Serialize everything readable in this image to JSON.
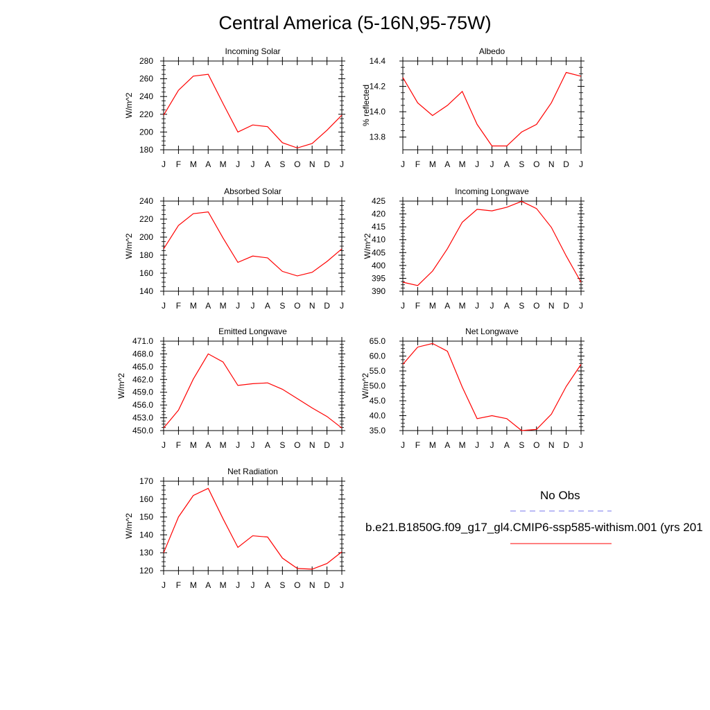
{
  "figure": {
    "title": "Central America (5-16N,95-75W)"
  },
  "legend": {
    "obs_label": "No Obs",
    "obs_color": "#7777ee",
    "model_label": "b.e21.B1850G.f09_g17_gl4.CMIP6-ssp585-withism.001 (yrs 201",
    "model_color": "#ff0000"
  },
  "chart_data": [
    {
      "type": "line",
      "title": "Incoming Solar",
      "ylabel": "W/m^2",
      "categories": [
        "J",
        "F",
        "M",
        "A",
        "M",
        "J",
        "J",
        "A",
        "S",
        "O",
        "N",
        "D",
        "J"
      ],
      "ylim": [
        180,
        280
      ],
      "yticks": [
        "180",
        "200",
        "220",
        "240",
        "260",
        "280"
      ],
      "series": [
        {
          "values": [
            219,
            247,
            263,
            265,
            232,
            200,
            208,
            206,
            188,
            182,
            187,
            202,
            219
          ]
        }
      ]
    },
    {
      "type": "line",
      "title": "Albedo",
      "ylabel": "% reflected",
      "categories": [
        "J",
        "F",
        "M",
        "A",
        "M",
        "J",
        "J",
        "A",
        "S",
        "O",
        "N",
        "D",
        "J"
      ],
      "ylim": [
        13.7,
        14.4
      ],
      "yticks": [
        "13.8",
        "14.0",
        "14.2",
        "14.4"
      ],
      "series": [
        {
          "values": [
            14.27,
            14.07,
            13.97,
            14.05,
            14.16,
            13.9,
            13.73,
            13.73,
            13.84,
            13.9,
            14.07,
            14.31,
            14.28
          ]
        }
      ]
    },
    {
      "type": "line",
      "title": "Absorbed Solar",
      "ylabel": "W/m^2",
      "categories": [
        "J",
        "F",
        "M",
        "A",
        "M",
        "J",
        "J",
        "A",
        "S",
        "O",
        "N",
        "D",
        "J"
      ],
      "ylim": [
        140,
        240
      ],
      "yticks": [
        "140",
        "160",
        "180",
        "200",
        "220",
        "240"
      ],
      "series": [
        {
          "values": [
            187,
            213,
            226,
            228,
            199,
            172,
            179,
            177,
            162,
            157,
            161,
            173,
            187
          ]
        }
      ]
    },
    {
      "type": "line",
      "title": "Incoming Longwave",
      "ylabel": "W/m^2",
      "categories": [
        "J",
        "F",
        "M",
        "A",
        "M",
        "J",
        "J",
        "A",
        "S",
        "O",
        "N",
        "D",
        "J"
      ],
      "ylim": [
        390,
        425
      ],
      "yticks": [
        "390",
        "395",
        "400",
        "405",
        "410",
        "415",
        "420",
        "425"
      ],
      "series": [
        {
          "values": [
            393.5,
            392.2,
            397.8,
            406.5,
            416.8,
            421.8,
            421.2,
            422.6,
            424.9,
            422.1,
            414.8,
            403.7,
            393.5
          ]
        }
      ]
    },
    {
      "type": "line",
      "title": "Emitted Longwave",
      "ylabel": "W/m^2",
      "categories": [
        "J",
        "F",
        "M",
        "A",
        "M",
        "J",
        "J",
        "A",
        "S",
        "O",
        "N",
        "D",
        "J"
      ],
      "ylim": [
        450,
        471
      ],
      "yticks": [
        "450.0",
        "453.0",
        "456.0",
        "459.0",
        "462.0",
        "465.0",
        "468.0",
        "471.0"
      ],
      "series": [
        {
          "values": [
            450.6,
            454.8,
            462.1,
            468.0,
            466.1,
            460.6,
            461.0,
            461.2,
            459.7,
            457.5,
            455.3,
            453.3,
            450.6
          ]
        }
      ]
    },
    {
      "type": "line",
      "title": "Net Longwave",
      "ylabel": "W/m^2",
      "categories": [
        "J",
        "F",
        "M",
        "A",
        "M",
        "J",
        "J",
        "A",
        "S",
        "O",
        "N",
        "D",
        "J"
      ],
      "ylim": [
        35,
        65
      ],
      "yticks": [
        "35.0",
        "40.0",
        "45.0",
        "50.0",
        "55.0",
        "60.0",
        "65.0"
      ],
      "series": [
        {
          "values": [
            57.2,
            63.0,
            64.2,
            61.6,
            49.6,
            39.0,
            40.0,
            39.0,
            35.0,
            35.4,
            40.5,
            49.8,
            57.2
          ]
        }
      ]
    },
    {
      "type": "line",
      "title": "Net Radiation",
      "ylabel": "W/m^2",
      "categories": [
        "J",
        "F",
        "M",
        "A",
        "M",
        "J",
        "J",
        "A",
        "S",
        "O",
        "N",
        "D",
        "J"
      ],
      "ylim": [
        120,
        170
      ],
      "yticks": [
        "120",
        "130",
        "140",
        "150",
        "160",
        "170"
      ],
      "series": [
        {
          "values": [
            130,
            150,
            162,
            166,
            149,
            133,
            139.5,
            138.8,
            127,
            121.2,
            120.8,
            124,
            130.5
          ]
        }
      ]
    }
  ]
}
